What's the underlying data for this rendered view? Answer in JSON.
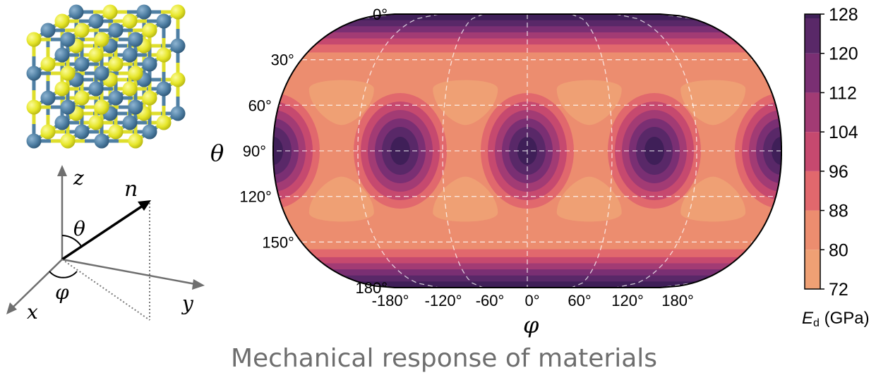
{
  "caption": "Mechanical response of materials",
  "crystal": {
    "atom_colors": {
      "a": "#4f7fa3",
      "b": "#e6e62a"
    }
  },
  "axes_diagram": {
    "labels": {
      "z": "z",
      "x": "x",
      "y": "y",
      "n": "n",
      "theta": "θ",
      "phi": "φ"
    }
  },
  "chart_data": {
    "type": "heatmap",
    "projection": "Robinson-like (oval)",
    "x_symbol": "φ",
    "y_symbol": "θ",
    "x_ticks": [
      "-180°",
      "-120°",
      "-60°",
      "0°",
      "60°",
      "120°",
      "180°"
    ],
    "x_tick_values": [
      -180,
      -120,
      -60,
      0,
      60,
      120,
      180
    ],
    "y_ticks": [
      "0°",
      "30°",
      "60°",
      "90°",
      "120°",
      "150°",
      "180°"
    ],
    "y_tick_values": [
      0,
      30,
      60,
      90,
      120,
      150,
      180
    ],
    "colorbar": {
      "label_main": "E",
      "label_sub": "d",
      "label_unit": " (GPa)",
      "ticks": [
        "128",
        "120",
        "112",
        "104",
        "96",
        "88",
        "80",
        "72"
      ],
      "tick_values": [
        128,
        120,
        112,
        104,
        96,
        88,
        80,
        72
      ],
      "range": [
        72,
        128
      ]
    },
    "colors": [
      "#efa074",
      "#ec8d6f",
      "#e1686d",
      "#c6496f",
      "#a23b74",
      "#7a2f73",
      "#592868",
      "#3f1f58"
    ],
    "grid": true
  }
}
